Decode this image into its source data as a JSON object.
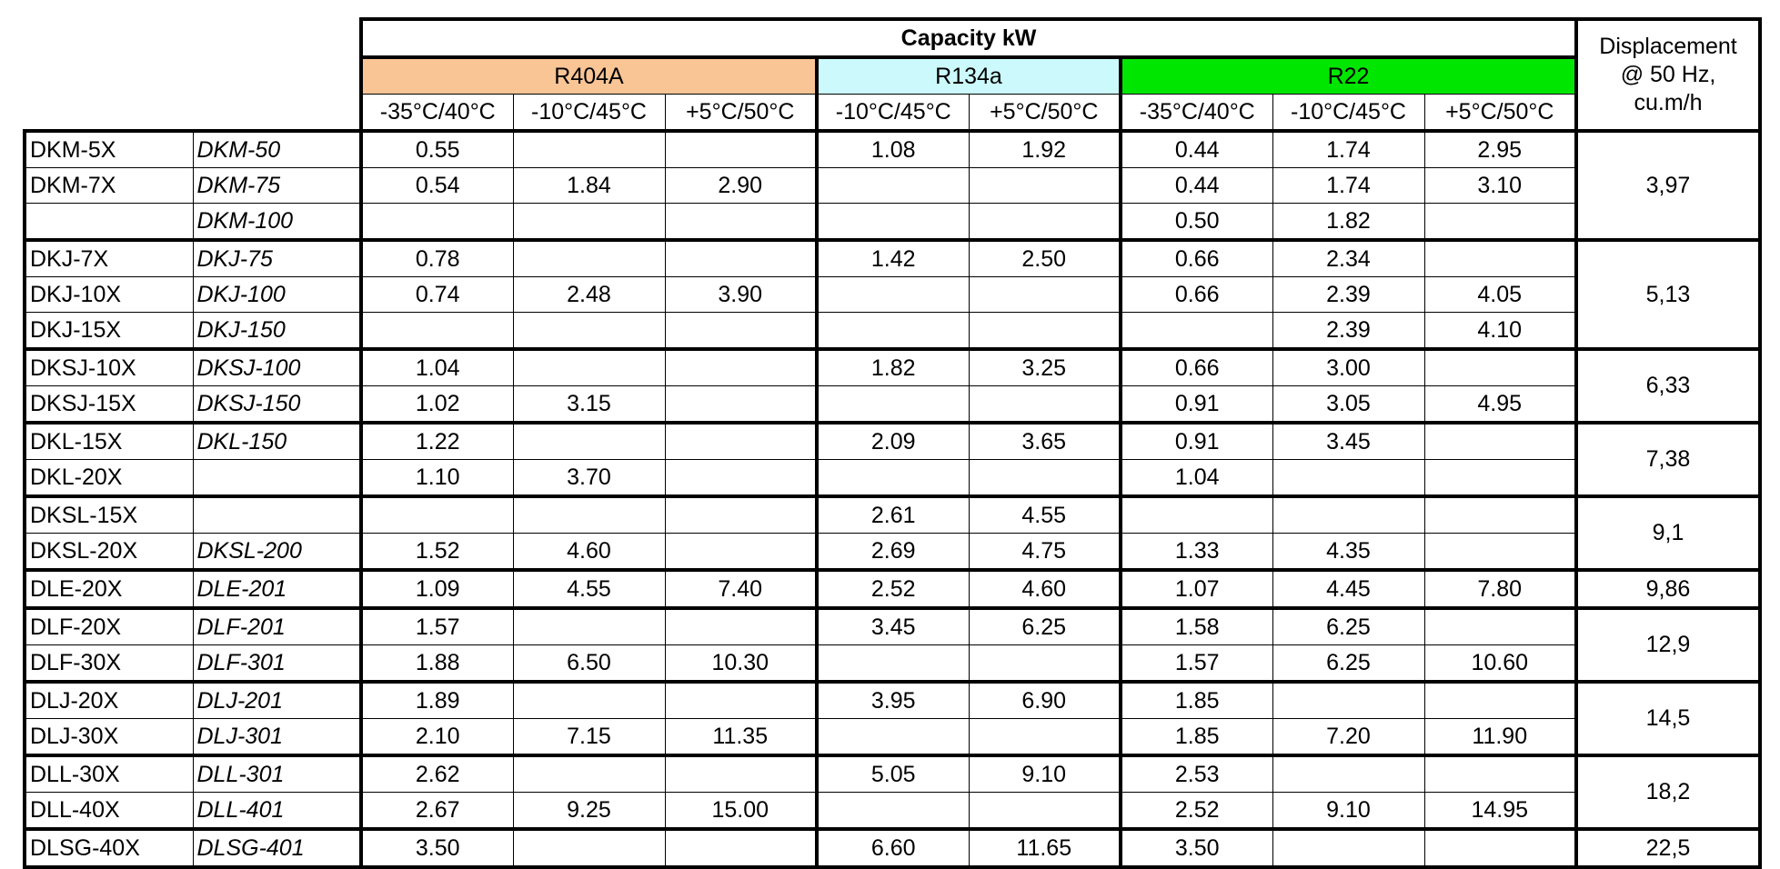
{
  "header": {
    "capacity": "Capacity kW",
    "displacement": [
      "Displacement",
      "@ 50 Hz,",
      "cu.m/h"
    ],
    "refrigerants": [
      {
        "name": "R404A",
        "color": "#f9c595",
        "temps": [
          "-35°C/40°C",
          "-10°C/45°C",
          "+5°C/50°C"
        ]
      },
      {
        "name": "R134a",
        "color": "#ccfafc",
        "temps": [
          "-10°C/45°C",
          "+5°C/50°C"
        ]
      },
      {
        "name": "R22",
        "color": "#00e600",
        "temps": [
          "-35°C/40°C",
          "-10°C/45°C",
          "+5°C/50°C"
        ]
      }
    ]
  },
  "groups": [
    {
      "displacement": "3,97",
      "rows": [
        {
          "model": "DKM-5X",
          "alt": "DKM-50",
          "values": [
            "0.55",
            null,
            null,
            "1.08",
            "1.92",
            "0.44",
            "1.74",
            "2.95"
          ]
        },
        {
          "model": "DKM-7X",
          "alt": "DKM-75",
          "values": [
            "0.54",
            "1.84",
            "2.90",
            null,
            null,
            "0.44",
            "1.74",
            "3.10"
          ]
        },
        {
          "model": null,
          "alt": "DKM-100",
          "values": [
            null,
            null,
            null,
            null,
            null,
            "0.50",
            "1.82",
            null
          ]
        }
      ]
    },
    {
      "displacement": "5,13",
      "rows": [
        {
          "model": "DKJ-7X",
          "alt": "DKJ-75",
          "values": [
            "0.78",
            null,
            null,
            "1.42",
            "2.50",
            "0.66",
            "2.34",
            null
          ]
        },
        {
          "model": "DKJ-10X",
          "alt": "DKJ-100",
          "values": [
            "0.74",
            "2.48",
            "3.90",
            null,
            null,
            "0.66",
            "2.39",
            "4.05"
          ]
        },
        {
          "model": "DKJ-15X",
          "alt": "DKJ-150",
          "values": [
            null,
            null,
            null,
            null,
            null,
            null,
            "2.39",
            "4.10"
          ]
        }
      ]
    },
    {
      "displacement": "6,33",
      "rows": [
        {
          "model": "DKSJ-10X",
          "alt": "DKSJ-100",
          "values": [
            "1.04",
            null,
            null,
            "1.82",
            "3.25",
            "0.66",
            "3.00",
            null
          ]
        },
        {
          "model": "DKSJ-15X",
          "alt": "DKSJ-150",
          "values": [
            "1.02",
            "3.15",
            null,
            null,
            null,
            "0.91",
            "3.05",
            "4.95"
          ]
        }
      ]
    },
    {
      "displacement": "7,38",
      "rows": [
        {
          "model": "DKL-15X",
          "alt": "DKL-150",
          "values": [
            "1.22",
            null,
            null,
            "2.09",
            "3.65",
            "0.91",
            "3.45",
            null
          ]
        },
        {
          "model": "DKL-20X",
          "alt": null,
          "values": [
            "1.10",
            "3.70",
            null,
            null,
            null,
            "1.04",
            null,
            null
          ]
        }
      ]
    },
    {
      "displacement": "9,1",
      "rows": [
        {
          "model": "DKSL-15X",
          "alt": null,
          "values": [
            null,
            null,
            null,
            "2.61",
            "4.55",
            null,
            null,
            null
          ]
        },
        {
          "model": "DKSL-20X",
          "alt": "DKSL-200",
          "values": [
            "1.52",
            "4.60",
            null,
            "2.69",
            "4.75",
            "1.33",
            "4.35",
            null
          ]
        }
      ]
    },
    {
      "displacement": "9,86",
      "rows": [
        {
          "model": "DLE-20X",
          "alt": "DLE-201",
          "values": [
            "1.09",
            "4.55",
            "7.40",
            "2.52",
            "4.60",
            "1.07",
            "4.45",
            "7.80"
          ]
        }
      ]
    },
    {
      "displacement": "12,9",
      "rows": [
        {
          "model": "DLF-20X",
          "alt": "DLF-201",
          "values": [
            "1.57",
            null,
            null,
            "3.45",
            "6.25",
            "1.58",
            "6.25",
            null
          ]
        },
        {
          "model": "DLF-30X",
          "alt": "DLF-301",
          "values": [
            "1.88",
            "6.50",
            "10.30",
            null,
            null,
            "1.57",
            "6.25",
            "10.60"
          ]
        }
      ]
    },
    {
      "displacement": "14,5",
      "rows": [
        {
          "model": "DLJ-20X",
          "alt": "DLJ-201",
          "values": [
            "1.89",
            null,
            null,
            "3.95",
            "6.90",
            "1.85",
            null,
            null
          ]
        },
        {
          "model": "DLJ-30X",
          "alt": "DLJ-301",
          "values": [
            "2.10",
            "7.15",
            "11.35",
            null,
            null,
            "1.85",
            "7.20",
            "11.90"
          ]
        }
      ]
    },
    {
      "displacement": "18,2",
      "rows": [
        {
          "model": "DLL-30X",
          "alt": "DLL-301",
          "values": [
            "2.62",
            null,
            null,
            "5.05",
            "9.10",
            "2.53",
            null,
            null
          ]
        },
        {
          "model": "DLL-40X",
          "alt": "DLL-401",
          "values": [
            "2.67",
            "9.25",
            "15.00",
            null,
            null,
            "2.52",
            "9.10",
            "14.95"
          ]
        }
      ]
    },
    {
      "displacement": "22,5",
      "rows": [
        {
          "model": "DLSG-40X",
          "alt": "DLSG-401",
          "values": [
            "3.50",
            null,
            null,
            "6.60",
            "11.65",
            "3.50",
            null,
            null
          ]
        }
      ]
    }
  ]
}
